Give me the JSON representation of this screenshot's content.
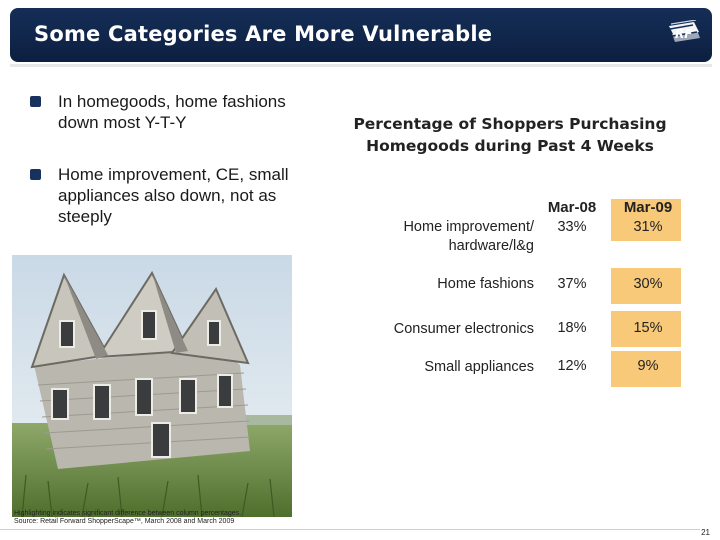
{
  "header": {
    "title": "Some Categories Are More Vulnerable",
    "logo_text": "RF"
  },
  "bullets": [
    "In homegoods, home fashions down most Y-T-Y",
    "Home improvement, CE, small appliances also down, not as steeply"
  ],
  "photo": {
    "icon": "crooked-house-photo"
  },
  "table": {
    "title": "Percentage of Shoppers Purchasing Homegoods during Past 4 Weeks",
    "columns": [
      "Mar-08",
      "Mar-09"
    ],
    "rows": [
      {
        "label": "Home improvement/ hardware/l&g",
        "values": [
          "33%",
          "31%"
        ]
      },
      {
        "label": "Home fashions",
        "values": [
          "37%",
          "30%"
        ]
      },
      {
        "label": "Consumer electronics",
        "values": [
          "18%",
          "15%"
        ]
      },
      {
        "label": "Small appliances",
        "values": [
          "12%",
          "9%"
        ]
      }
    ],
    "highlight_color": "#f7c979"
  },
  "footer": {
    "note_1": "Highlighting indicates significant difference between column percentages.",
    "note_2": "Source: Retail Forward ShopperScape™, March 2008 and March 2009",
    "page_number": "21"
  },
  "colors": {
    "header_navy": "#152e57",
    "bullet_navy": "#17325e"
  }
}
